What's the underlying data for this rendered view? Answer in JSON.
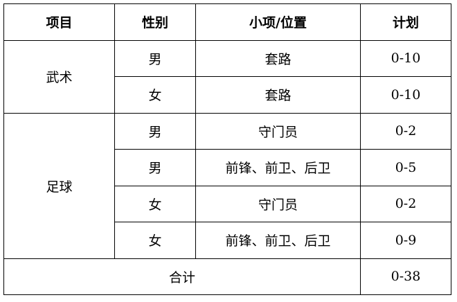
{
  "headers": [
    "项目",
    "性别",
    "小项/位置",
    "计划"
  ],
  "groups": [
    {
      "name": "武术",
      "rows": [
        {
          "gender": "男",
          "item": "套路",
          "plan": "0-10"
        },
        {
          "gender": "女",
          "item": "套路",
          "plan": "0-10"
        }
      ]
    },
    {
      "name": "足球",
      "rows": [
        {
          "gender": "男",
          "item": "守门员",
          "plan": "0-2"
        },
        {
          "gender": "男",
          "item": "前锋、前卫、后卫",
          "plan": "0-5"
        },
        {
          "gender": "女",
          "item": "守门员",
          "plan": "0-2"
        },
        {
          "gender": "女",
          "item": "前锋、前卫、后卫",
          "plan": "0-9"
        }
      ]
    }
  ],
  "total": {
    "label": "合计",
    "plan": "0-38"
  }
}
